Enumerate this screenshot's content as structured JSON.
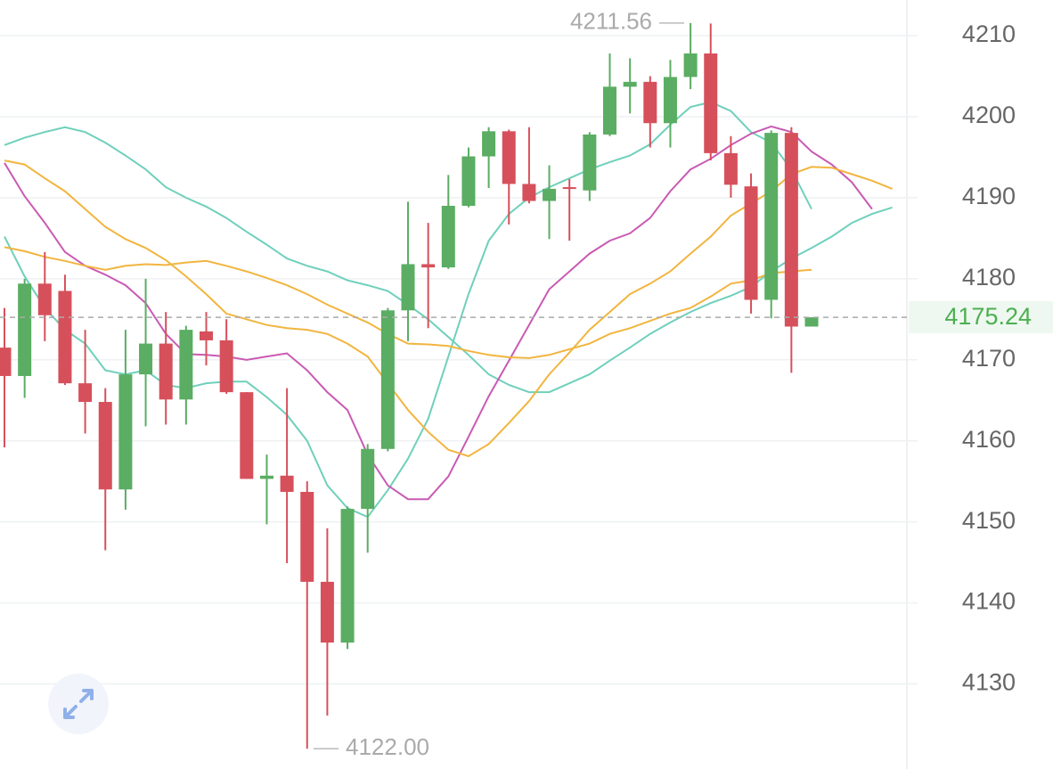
{
  "chart_data": {
    "type": "candlestick",
    "open": [
      4171.5,
      4168.0,
      4179.4,
      4178.5,
      4167.1,
      4164.8,
      4154.0,
      4168.2,
      4172.0,
      4165.1,
      4173.5,
      4172.4,
      4166.0,
      4155.3,
      4155.7,
      4153.7,
      4142.6,
      4135.1,
      4151.6,
      4159.0,
      4176.1,
      4181.8,
      4181.4,
      4189.0,
      4195.1,
      4198.2,
      4191.7,
      4189.6,
      4191.3,
      4190.9,
      4197.8,
      4203.7,
      4204.3,
      4199.2,
      4204.9,
      4207.8,
      4195.5,
      4191.4,
      4177.4,
      4198.0,
      4174.1
    ],
    "high": [
      4176.4,
      4180.0,
      4183.3,
      4180.5,
      4173.7,
      4166.5,
      4173.7,
      4180.0,
      4175.9,
      4174.2,
      4175.9,
      4175.0,
      4166.0,
      4158.3,
      4166.5,
      4155.0,
      4149.2,
      4151.9,
      4159.6,
      4176.4,
      4189.5,
      4186.9,
      4192.8,
      4196.2,
      4198.7,
      4198.4,
      4198.7,
      4194.0,
      4192.3,
      4198.1,
      4207.8,
      4207.2,
      4205.0,
      4207.0,
      4211.56,
      4211.5,
      4197.6,
      4193.0,
      4198.3,
      4198.7,
      4175.24
    ],
    "low": [
      4159.2,
      4165.3,
      4172.3,
      4166.9,
      4160.9,
      4146.5,
      4151.5,
      4161.8,
      4162.0,
      4162.0,
      4169.3,
      4165.8,
      4155.3,
      4149.7,
      4144.9,
      4122.0,
      4126.1,
      4134.3,
      4146.2,
      4158.7,
      4172.3,
      4173.9,
      4181.2,
      4188.8,
      4191.2,
      4186.7,
      4189.3,
      4184.9,
      4184.7,
      4189.6,
      4197.6,
      4200.4,
      4196.2,
      4196.2,
      4203.4,
      4194.6,
      4190.0,
      4175.7,
      4175.1,
      4168.4,
      4174.1
    ],
    "close": [
      4168.0,
      4179.4,
      4175.5,
      4167.1,
      4164.8,
      4154.0,
      4168.2,
      4172.0,
      4165.1,
      4173.7,
      4172.4,
      4166.0,
      4155.3,
      4155.7,
      4153.7,
      4142.6,
      4135.1,
      4151.6,
      4159.0,
      4176.1,
      4181.8,
      4181.4,
      4189.0,
      4195.1,
      4198.2,
      4191.7,
      4189.6,
      4191.1,
      4191.1,
      4197.8,
      4203.7,
      4204.3,
      4199.2,
      4204.9,
      4207.8,
      4195.5,
      4191.6,
      4177.4,
      4198.0,
      4174.1,
      4175.24
    ],
    "up_color": "#5aad62",
    "down_color": "#d6505b",
    "series": [
      {
        "color": "#6fd0bb",
        "values": [
          4196.5,
          4197.4,
          4198.1,
          4198.7,
          4198.1,
          4196.8,
          4195.2,
          4193.5,
          4191.3,
          4190.0,
          4188.9,
          4187.5,
          4185.8,
          4184.2,
          4182.5,
          4181.6,
          4180.9,
          4179.8,
          4179.2,
          4178.5,
          4176.8,
          4175.0,
          4172.8,
          4170.6,
          4168.2,
          4166.9,
          4166.0,
          4166.0,
          4167.1,
          4168.2,
          4169.9,
          4171.5,
          4173.2,
          4174.6,
          4175.9,
          4177.0,
          4177.9,
          4179.0,
          4180.9,
          4182.5,
          4183.8,
          4185.2,
          4186.9,
          4188.0,
          4188.8
        ]
      },
      {
        "color": "#6fd0bb",
        "values": [
          4185.2,
          4180.3,
          4176.4,
          4173.7,
          4172.0,
          4168.7,
          4168.2,
          4168.7,
          4166.9,
          4166.5,
          4167.1,
          4167.3,
          4167.3,
          4165.4,
          4163.2,
          4160.0,
          4154.5,
          4151.7,
          4150.6,
          4153.9,
          4157.8,
          4162.7,
          4170.4,
          4178.1,
          4184.7,
          4188.0,
          4190.0,
          4191.3,
          4192.4,
          4193.5,
          4194.4,
          4195.2,
          4196.6,
          4199.0,
          4201.2,
          4201.8,
          4200.7,
          4198.1,
          4196.8,
          4193.5,
          4188.6,
          null,
          null,
          null,
          null
        ]
      },
      {
        "color": "#c95ab3",
        "values": [
          4194.3,
          4190.2,
          4186.9,
          4183.3,
          4181.6,
          4180.5,
          4179.2,
          4177.0,
          4173.2,
          4170.7,
          4170.6,
          4170.4,
          4170.0,
          4170.4,
          4170.8,
          4168.7,
          4166.0,
          4163.8,
          4158.3,
          4154.5,
          4152.8,
          4152.8,
          4155.6,
          4160.5,
          4165.5,
          4169.9,
          4174.3,
          4178.7,
          4180.9,
          4183.1,
          4184.7,
          4185.6,
          4187.5,
          4190.8,
          4193.5,
          4194.8,
          4196.5,
          4197.9,
          4198.8,
          4198.1,
          4195.7,
          4194.1,
          4191.9,
          4188.6,
          null
        ]
      },
      {
        "color": "#f1b53f",
        "values": [
          4194.6,
          4194.1,
          4192.4,
          4190.8,
          4188.6,
          4186.4,
          4184.9,
          4183.8,
          4182.3,
          4180.3,
          4178.1,
          4175.7,
          4175.0,
          4174.3,
          4173.9,
          4173.7,
          4173.2,
          4172.0,
          4170.4,
          4167.1,
          4163.8,
          4161.1,
          4158.9,
          4158.1,
          4159.6,
          4162.2,
          4164.9,
          4168.2,
          4170.9,
          4173.7,
          4175.9,
          4178.1,
          4179.4,
          4180.9,
          4183.1,
          4185.2,
          4187.8,
          4189.3,
          4190.8,
          4192.9,
          4193.8,
          4193.7,
          4192.9,
          4192.1,
          4191.1
        ]
      },
      {
        "color": "#f1b53f",
        "values": [
          4183.9,
          4183.4,
          4182.7,
          4182.2,
          4181.6,
          4181.1,
          4181.6,
          4181.8,
          4181.7,
          4182.0,
          4182.2,
          4181.6,
          4180.9,
          4180.1,
          4179.2,
          4178.1,
          4176.8,
          4175.7,
          4174.6,
          4173.2,
          4172.0,
          4171.9,
          4171.7,
          4171.1,
          4170.6,
          4170.3,
          4170.2,
          4170.6,
          4171.3,
          4172.0,
          4173.2,
          4173.9,
          4174.8,
          4175.7,
          4176.4,
          4177.8,
          4179.4,
          4179.8,
          4180.7,
          4180.9,
          4181.1,
          null,
          null,
          null,
          null
        ]
      }
    ],
    "ylim": [
      4119.5,
      4214.4
    ],
    "yticks": [
      4130,
      4140,
      4150,
      4160,
      4170,
      4180,
      4190,
      4200,
      4210
    ],
    "grid": true,
    "max_marker": 4211.56,
    "min_marker": {
      "value": 4122,
      "label": "4122.00"
    },
    "last_price": 4175.24,
    "last_color": "#4caf50"
  }
}
